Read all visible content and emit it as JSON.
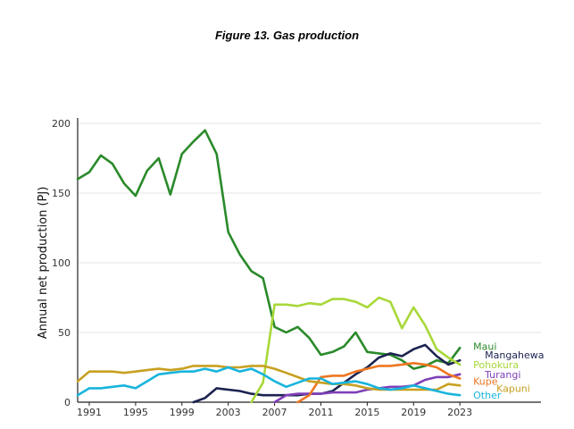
{
  "figure_title": "Figure 13. Gas production",
  "chart_data": {
    "type": "line",
    "title": "Figure 13. Gas production",
    "xlabel": "",
    "ylabel": "Annual net production (PJ)",
    "xlim": [
      1990,
      2030
    ],
    "ylim": [
      0,
      200
    ],
    "xticks": [
      1991,
      1995,
      1999,
      2003,
      2007,
      2011,
      2015,
      2019,
      2023
    ],
    "yticks": [
      0,
      50,
      100,
      150,
      200
    ],
    "grid": "horizontal",
    "series": [
      {
        "name": "Maui",
        "color": "#2a8a2a",
        "label_xy": [
          2024,
          40
        ],
        "points": [
          [
            1990,
            160
          ],
          [
            1991,
            165
          ],
          [
            1992,
            177
          ],
          [
            1993,
            171
          ],
          [
            1994,
            157
          ],
          [
            1995,
            148
          ],
          [
            1996,
            166
          ],
          [
            1997,
            175
          ],
          [
            1998,
            149
          ],
          [
            1999,
            178
          ],
          [
            2000,
            187
          ],
          [
            2001,
            195
          ],
          [
            2002,
            178
          ],
          [
            2003,
            122
          ],
          [
            2004,
            106
          ],
          [
            2005,
            94
          ],
          [
            2006,
            89
          ],
          [
            2007,
            54
          ],
          [
            2008,
            50
          ],
          [
            2009,
            54
          ],
          [
            2010,
            46
          ],
          [
            2011,
            34
          ],
          [
            2012,
            36
          ],
          [
            2013,
            40
          ],
          [
            2014,
            50
          ],
          [
            2015,
            36
          ],
          [
            2016,
            35
          ],
          [
            2017,
            34
          ],
          [
            2018,
            30
          ],
          [
            2019,
            24
          ],
          [
            2020,
            26
          ],
          [
            2021,
            30
          ],
          [
            2022,
            28
          ],
          [
            2023,
            39
          ]
        ]
      },
      {
        "name": "Mangahewa",
        "color": "#1c2350",
        "label_xy": [
          2025,
          34
        ],
        "points": [
          [
            2000,
            0
          ],
          [
            2001,
            3
          ],
          [
            2002,
            10
          ],
          [
            2003,
            9
          ],
          [
            2004,
            8
          ],
          [
            2005,
            6
          ],
          [
            2006,
            5
          ],
          [
            2007,
            5
          ],
          [
            2008,
            5
          ],
          [
            2009,
            5
          ],
          [
            2010,
            6
          ],
          [
            2011,
            6
          ],
          [
            2012,
            8
          ],
          [
            2013,
            14
          ],
          [
            2014,
            20
          ],
          [
            2015,
            25
          ],
          [
            2016,
            32
          ],
          [
            2017,
            35
          ],
          [
            2018,
            33
          ],
          [
            2019,
            38
          ],
          [
            2020,
            41
          ],
          [
            2021,
            33
          ],
          [
            2022,
            27
          ],
          [
            2023,
            30
          ]
        ]
      },
      {
        "name": "Pohokura",
        "color": "#a8d83a",
        "label_xy": [
          2024,
          27
        ],
        "points": [
          [
            2005,
            0
          ],
          [
            2006,
            14
          ],
          [
            2007,
            70
          ],
          [
            2008,
            70
          ],
          [
            2009,
            69
          ],
          [
            2010,
            71
          ],
          [
            2011,
            70
          ],
          [
            2012,
            74
          ],
          [
            2013,
            74
          ],
          [
            2014,
            72
          ],
          [
            2015,
            68
          ],
          [
            2016,
            75
          ],
          [
            2017,
            72
          ],
          [
            2018,
            53
          ],
          [
            2019,
            68
          ],
          [
            2020,
            55
          ],
          [
            2021,
            38
          ],
          [
            2022,
            32
          ],
          [
            2023,
            27
          ]
        ]
      },
      {
        "name": "Turangi",
        "color": "#8040b8",
        "label_xy": [
          2025,
          20
        ],
        "points": [
          [
            2007,
            0
          ],
          [
            2008,
            5
          ],
          [
            2009,
            6
          ],
          [
            2010,
            6
          ],
          [
            2011,
            6
          ],
          [
            2012,
            7
          ],
          [
            2013,
            7
          ],
          [
            2014,
            7
          ],
          [
            2015,
            9
          ],
          [
            2016,
            10
          ],
          [
            2017,
            11
          ],
          [
            2018,
            11
          ],
          [
            2019,
            12
          ],
          [
            2020,
            16
          ],
          [
            2021,
            18
          ],
          [
            2022,
            18
          ],
          [
            2023,
            20
          ]
        ]
      },
      {
        "name": "Kupe",
        "color": "#ee7722",
        "label_xy": [
          2024,
          15
        ],
        "points": [
          [
            2009,
            0
          ],
          [
            2010,
            5
          ],
          [
            2011,
            18
          ],
          [
            2012,
            19
          ],
          [
            2013,
            19
          ],
          [
            2014,
            22
          ],
          [
            2015,
            24
          ],
          [
            2016,
            26
          ],
          [
            2017,
            26
          ],
          [
            2018,
            27
          ],
          [
            2019,
            28
          ],
          [
            2020,
            27
          ],
          [
            2021,
            25
          ],
          [
            2022,
            20
          ],
          [
            2023,
            17
          ]
        ]
      },
      {
        "name": "Kapuni",
        "color": "#c8a020",
        "label_xy": [
          2026,
          10
        ],
        "points": [
          [
            1990,
            15
          ],
          [
            1991,
            22
          ],
          [
            1992,
            22
          ],
          [
            1993,
            22
          ],
          [
            1994,
            21
          ],
          [
            1995,
            22
          ],
          [
            1996,
            23
          ],
          [
            1997,
            24
          ],
          [
            1998,
            23
          ],
          [
            1999,
            24
          ],
          [
            2000,
            26
          ],
          [
            2001,
            26
          ],
          [
            2002,
            26
          ],
          [
            2003,
            25
          ],
          [
            2004,
            25
          ],
          [
            2005,
            26
          ],
          [
            2006,
            26
          ],
          [
            2007,
            24
          ],
          [
            2008,
            21
          ],
          [
            2009,
            18
          ],
          [
            2010,
            15
          ],
          [
            2011,
            14
          ],
          [
            2012,
            13
          ],
          [
            2013,
            13
          ],
          [
            2014,
            12
          ],
          [
            2015,
            10
          ],
          [
            2016,
            9
          ],
          [
            2017,
            9
          ],
          [
            2018,
            9
          ],
          [
            2019,
            9
          ],
          [
            2020,
            9
          ],
          [
            2021,
            9
          ],
          [
            2022,
            13
          ],
          [
            2023,
            12
          ]
        ]
      },
      {
        "name": "Other",
        "color": "#18b4dc",
        "label_xy": [
          2024,
          5
        ],
        "points": [
          [
            1990,
            5
          ],
          [
            1991,
            10
          ],
          [
            1992,
            10
          ],
          [
            1993,
            11
          ],
          [
            1994,
            12
          ],
          [
            1995,
            10
          ],
          [
            1996,
            15
          ],
          [
            1997,
            20
          ],
          [
            1998,
            21
          ],
          [
            1999,
            22
          ],
          [
            2000,
            22
          ],
          [
            2001,
            24
          ],
          [
            2002,
            22
          ],
          [
            2003,
            25
          ],
          [
            2004,
            22
          ],
          [
            2005,
            24
          ],
          [
            2006,
            20
          ],
          [
            2007,
            15
          ],
          [
            2008,
            11
          ],
          [
            2009,
            14
          ],
          [
            2010,
            17
          ],
          [
            2011,
            17
          ],
          [
            2012,
            13
          ],
          [
            2013,
            14
          ],
          [
            2014,
            15
          ],
          [
            2015,
            13
          ],
          [
            2016,
            10
          ],
          [
            2017,
            9
          ],
          [
            2018,
            10
          ],
          [
            2019,
            12
          ],
          [
            2020,
            10
          ],
          [
            2021,
            8
          ],
          [
            2022,
            6
          ],
          [
            2023,
            5
          ]
        ]
      }
    ]
  }
}
